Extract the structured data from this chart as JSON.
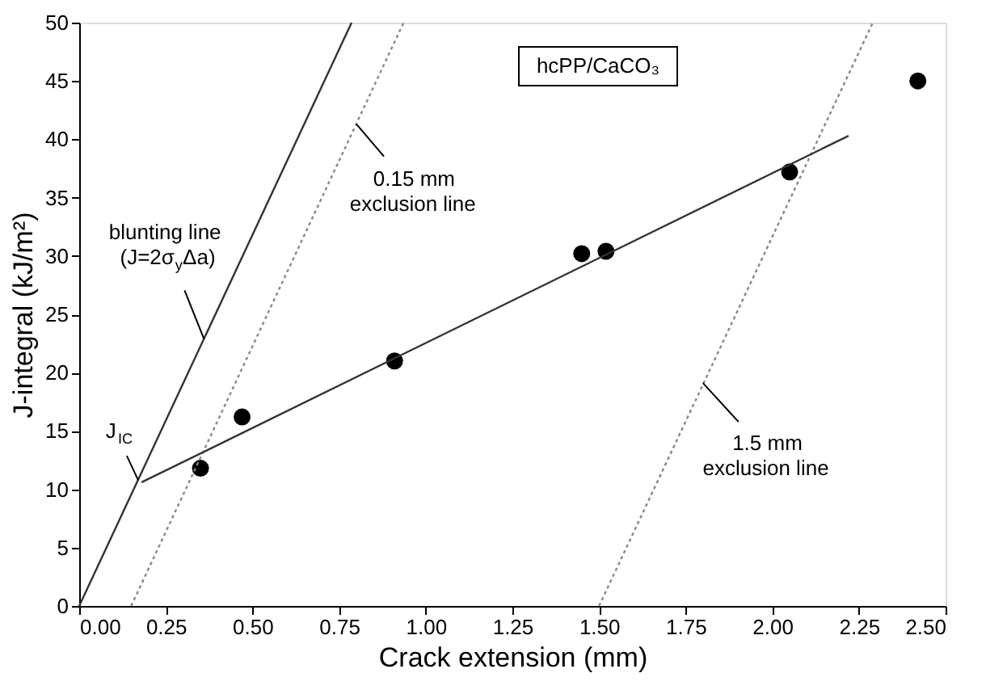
{
  "chart_data": {
    "type": "scatter",
    "xlabel": "Crack extension (mm)",
    "ylabel": "J-integral (kJ/m²)",
    "xlim": [
      0,
      2.5
    ],
    "ylim": [
      0,
      50
    ],
    "xticks": [
      {
        "value": 0,
        "label": "0.00"
      },
      {
        "value": 0.25,
        "label": "0.25"
      },
      {
        "value": 0.5,
        "label": "0.50"
      },
      {
        "value": 0.75,
        "label": "0.75"
      },
      {
        "value": 1,
        "label": "1.00"
      },
      {
        "value": 1.25,
        "label": "1.25"
      },
      {
        "value": 1.5,
        "label": "1.50"
      },
      {
        "value": 1.75,
        "label": "1.75"
      },
      {
        "value": 2,
        "label": "2.00"
      },
      {
        "value": 2.25,
        "label": "2.25"
      },
      {
        "value": 2.5,
        "label": "2.50"
      }
    ],
    "yticks": [
      0,
      5,
      10,
      15,
      20,
      25,
      30,
      35,
      40,
      45,
      50
    ],
    "grid": false,
    "legend": false,
    "series": [
      {
        "type": "scatter",
        "color": "#000000",
        "marker": "circle",
        "x": [
          0.35,
          0.47,
          0.91,
          1.45,
          1.52,
          2.05,
          2.42
        ],
        "values": [
          11.8,
          16.2,
          21.0,
          30.2,
          30.4,
          37.2,
          45.0
        ]
      },
      {
        "type": "line",
        "color": "#333333",
        "line_style": "solid",
        "x": [
          0,
          0.786
        ],
        "values": [
          0,
          50
        ]
      },
      {
        "type": "line",
        "color": "#888888",
        "line_style": "dotted",
        "x": [
          0.15,
          0.936
        ],
        "values": [
          0,
          50
        ]
      },
      {
        "type": "line",
        "color": "#888888",
        "line_style": "dotted",
        "x": [
          1.5,
          2.29
        ],
        "values": [
          0,
          50
        ]
      },
      {
        "type": "line",
        "color": "#333333",
        "line_style": "solid",
        "x": [
          0.18,
          2.22
        ],
        "values": [
          10.6,
          40.3
        ]
      }
    ],
    "annotations": [
      {
        "text": "blunting line\n(J=2σ$_{y}$Δa)",
        "x": 0.36,
        "y": 22.9
      },
      {
        "text": "0.15 mm\nexclusion line",
        "x": 0.8,
        "y": 41.3
      },
      {
        "text": "1.5 mm\nexclusion line",
        "x": 1.8,
        "y": 19.1
      },
      {
        "text": "J$_{IC}$",
        "x": 0.17,
        "y": 10.8
      },
      "hcPP/CaCO₃"
    ]
  }
}
